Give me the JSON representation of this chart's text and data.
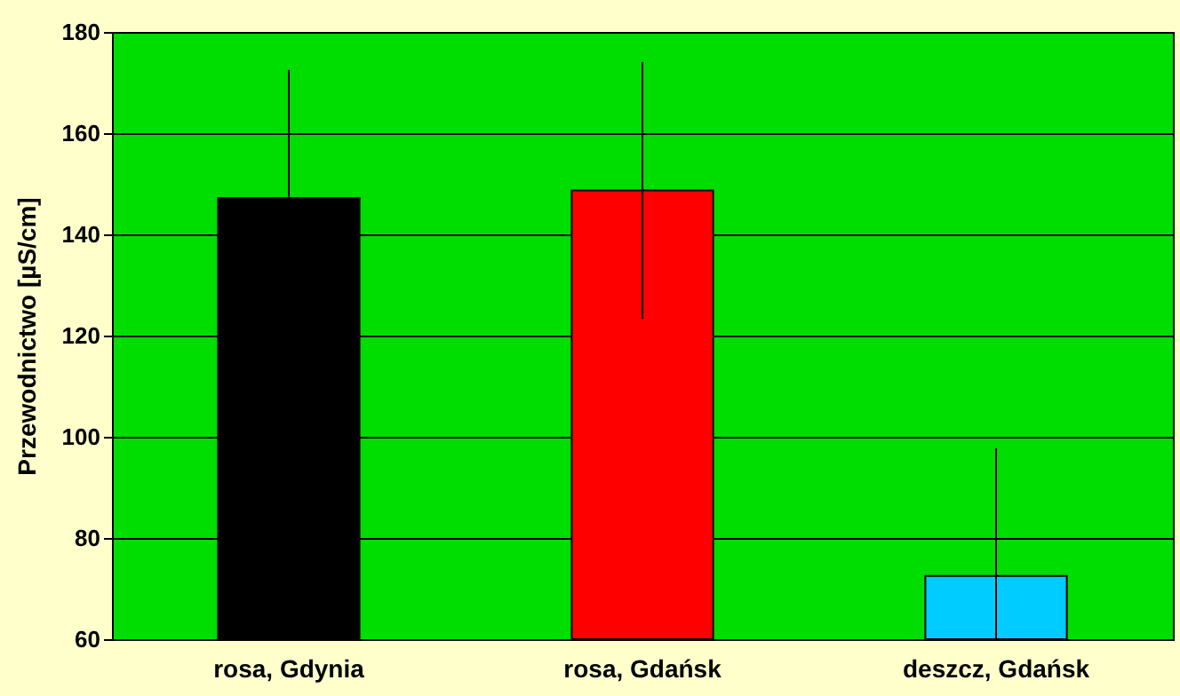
{
  "chart_data": {
    "type": "bar",
    "ylabel": "Przewodnictwo [µS/cm]",
    "categories": [
      "rosa, Gdynia",
      "rosa, Gdańsk",
      "deszcz, Gdańsk"
    ],
    "values": [
      147.2,
      148.7,
      72.5
    ],
    "colors": [
      "#000000",
      "#ff0000",
      "#00ccff"
    ],
    "errors": [
      25.3,
      25.4,
      [
        60,
        97.7
      ]
    ],
    "ylim": [
      60,
      180
    ],
    "yticks": [
      60,
      80,
      100,
      120,
      140,
      160,
      180
    ],
    "grid": "y"
  }
}
